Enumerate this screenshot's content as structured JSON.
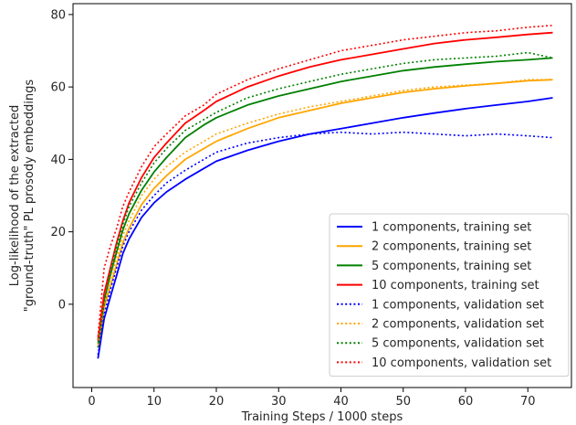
{
  "chart_data": {
    "type": "line",
    "xlabel": "Training Steps / 1000 steps",
    "ylabel_lines": [
      "Log-likelihood of the extracted",
      "\"ground-truth\" PL prosody embeddings"
    ],
    "xlim": [
      -3,
      77
    ],
    "ylim": [
      -23,
      83
    ],
    "xticks": [
      0,
      10,
      20,
      30,
      40,
      50,
      60,
      70
    ],
    "yticks": [
      0,
      20,
      40,
      60,
      80
    ],
    "grid": false,
    "legend_position": "lower-right",
    "x": [
      1,
      2,
      3,
      4,
      5,
      6,
      8,
      10,
      12,
      15,
      18,
      20,
      25,
      30,
      35,
      40,
      45,
      50,
      55,
      60,
      65,
      70,
      74
    ],
    "series": [
      {
        "name": "1 components, training set",
        "color": "#0000ff",
        "style": "solid",
        "values": [
          -15,
          -4,
          2,
          8,
          14,
          18,
          24,
          28,
          31,
          34.5,
          37.5,
          39.5,
          42.5,
          45,
          47,
          48.5,
          50,
          51.5,
          52.8,
          54,
          55,
          56,
          57
        ]
      },
      {
        "name": "2 components, training set",
        "color": "#ffa500",
        "style": "solid",
        "values": [
          -12,
          -1,
          5,
          11,
          17,
          21,
          27.5,
          32,
          35.5,
          40,
          43,
          45,
          48.5,
          51.5,
          53.5,
          55.5,
          57,
          58.5,
          59.5,
          60.3,
          61,
          61.7,
          62
        ]
      },
      {
        "name": "5 components, training set",
        "color": "#008000",
        "style": "solid",
        "values": [
          -11,
          1,
          8,
          14.5,
          20.5,
          25,
          31.5,
          36.5,
          40.5,
          46,
          49.5,
          51.5,
          55,
          57.5,
          59.5,
          61.5,
          63,
          64.5,
          65.5,
          66.3,
          67,
          67.5,
          68
        ]
      },
      {
        "name": "10 components, training set",
        "color": "#ff0000",
        "style": "solid",
        "values": [
          -10,
          3,
          10,
          17,
          23,
          28,
          35,
          40.5,
          44.5,
          50,
          53.5,
          56,
          60,
          63,
          65.5,
          67.5,
          69,
          70.5,
          72,
          73,
          73.7,
          74.5,
          75
        ]
      },
      {
        "name": "1 components, validation set",
        "color": "#0000ff",
        "style": "dotted",
        "values": [
          -14,
          -3,
          4,
          10,
          16,
          20,
          26,
          30,
          33.5,
          37,
          40,
          42,
          44.5,
          46,
          47,
          47.5,
          47,
          47.5,
          47,
          46.5,
          47,
          46.5,
          46
        ]
      },
      {
        "name": "2 components, validation set",
        "color": "#ffa500",
        "style": "dotted",
        "values": [
          -11,
          0,
          7,
          13,
          19,
          23,
          30,
          34.5,
          38,
          42,
          45,
          47,
          50,
          52.5,
          54.5,
          56,
          57.5,
          59,
          60,
          60.5,
          61,
          62,
          62
        ]
      },
      {
        "name": "5 components, validation set",
        "color": "#008000",
        "style": "dotted",
        "values": [
          -12,
          0,
          9,
          16,
          22,
          27,
          33.5,
          39,
          43,
          48,
          51,
          53,
          57,
          59.5,
          61.5,
          63.5,
          65,
          66.5,
          67.5,
          68,
          68.5,
          69.5,
          68
        ]
      },
      {
        "name": "10 components, validation set",
        "color": "#ff0000",
        "style": "dotted",
        "values": [
          -9,
          10,
          16,
          21,
          27,
          31,
          38,
          43.5,
          47,
          52,
          55,
          58,
          62,
          65,
          67.5,
          70,
          71.5,
          73,
          74,
          75,
          75.5,
          76.5,
          77
        ]
      }
    ]
  }
}
